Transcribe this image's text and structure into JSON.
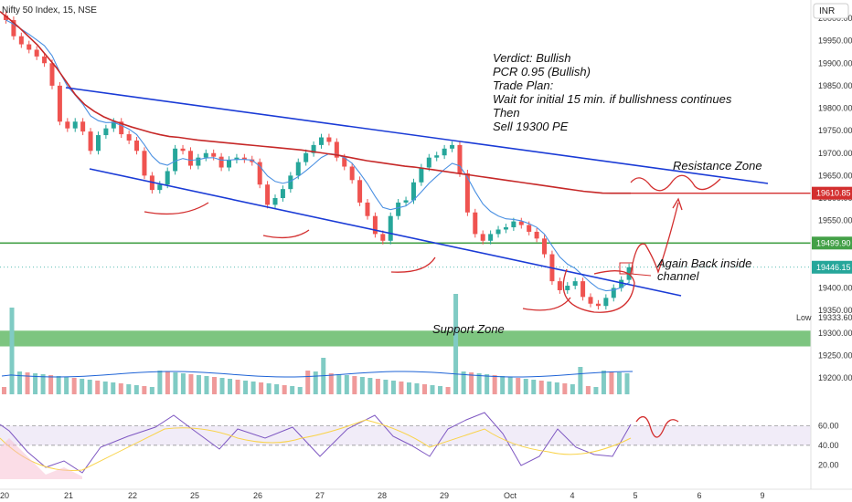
{
  "header": {
    "symbol": "Nifty 50 Index, 15, NSE",
    "currency": "INR"
  },
  "annotations": {
    "verdict": [
      "Verdict:  Bullish",
      "PCR 0.95 (Bullish)",
      "Trade Plan:",
      "Wait for initial 15 min. if bullishness continues",
      "Then",
      "     Sell 19300 PE"
    ],
    "resistance_zone": "Resistance Zone",
    "support_zone": "Support Zone",
    "back_inside": [
      "Again Back inside",
      "channel"
    ]
  },
  "chart_data": {
    "type": "candlestick",
    "title": "",
    "y_ticks": [
      20000.0,
      19950.0,
      19900.0,
      19850.0,
      19800.0,
      19750.0,
      19700.0,
      19650.0,
      19600.0,
      19550.0,
      19500.0,
      19450.0,
      19400.0,
      19350.0,
      19300.0,
      19250.0,
      19200.0
    ],
    "y_tick_labels": [
      "20000.00",
      "19950.00",
      "19900.00",
      "19850.00",
      "19800.00",
      "19750.00",
      "19700.00",
      "19650.00",
      "19600.00",
      "19550.00",
      "19500.00",
      "19450.00",
      "19400.00",
      "19350.00",
      "19300.00",
      "19250.00",
      "19200.00"
    ],
    "x_labels": [
      "20",
      "21",
      "22",
      "25",
      "26",
      "27",
      "28",
      "29",
      "Oct",
      "4",
      "5",
      "6",
      "9"
    ],
    "price_tags": [
      {
        "label": "19610.85",
        "value": 19610.85,
        "color": "#d32f2f"
      },
      {
        "label": "19499.90",
        "value": 19499.9,
        "color": "#43a047"
      },
      {
        "label": "19446.15",
        "value": 19446.15,
        "color": "#26a69a"
      },
      {
        "label": "19333.60",
        "value": 19333.6,
        "color": "#333333",
        "prefix": "Low"
      }
    ],
    "resistance_level": 19610.85,
    "support_level": 19499.9,
    "support_zone": [
      19270,
      19305
    ],
    "close_price": [
      19996,
      19960,
      19942,
      19930,
      19915,
      19900,
      19850,
      19770,
      19755,
      19770,
      19748,
      19705,
      19740,
      19755,
      19770,
      19742,
      19728,
      19705,
      19650,
      19618,
      19630,
      19660,
      19710,
      19705,
      19672,
      19690,
      19700,
      19692,
      19668,
      19685,
      19690,
      19686,
      19680,
      19630,
      19585,
      19600,
      19620,
      19650,
      19680,
      19700,
      19718,
      19735,
      19725,
      19690,
      19670,
      19640,
      19590,
      19560,
      19520,
      19505,
      19560,
      19590,
      19595,
      19635,
      19668,
      19690,
      19695,
      19710,
      19718,
      19655,
      19568,
      19520,
      19505,
      19520,
      19530,
      19535,
      19548,
      19540,
      19525,
      19510,
      19475,
      19415,
      19395,
      19405,
      19415,
      19380,
      19365,
      19360,
      19378,
      19400,
      19418,
      19446.15
    ],
    "ema_red": [
      20015,
      19998,
      19980,
      19960,
      19940,
      19915,
      19890,
      19860,
      19830,
      19808,
      19793,
      19781,
      19772,
      19765,
      19758,
      19752,
      19746,
      19741,
      19737,
      19735,
      19732,
      19729,
      19727,
      19725,
      19723,
      19721,
      19719,
      19717,
      19715,
      19713,
      19711,
      19709,
      19707,
      19704,
      19701,
      19698,
      19695,
      19691,
      19687,
      19683,
      19680,
      19677,
      19674,
      19671,
      19669,
      19666,
      19663,
      19660,
      19657,
      19654,
      19651,
      19648,
      19645,
      19642,
      19639,
      19636,
      19633,
      19630,
      19627,
      19624,
      19621,
      19618,
      19615,
      19613,
      19611,
      19610.85,
      19610.85,
      19610.85
    ],
    "rsi": {
      "levels": [
        60.0,
        40.0,
        20.0
      ],
      "band": [
        40,
        60
      ]
    },
    "volume_bars": 81
  }
}
